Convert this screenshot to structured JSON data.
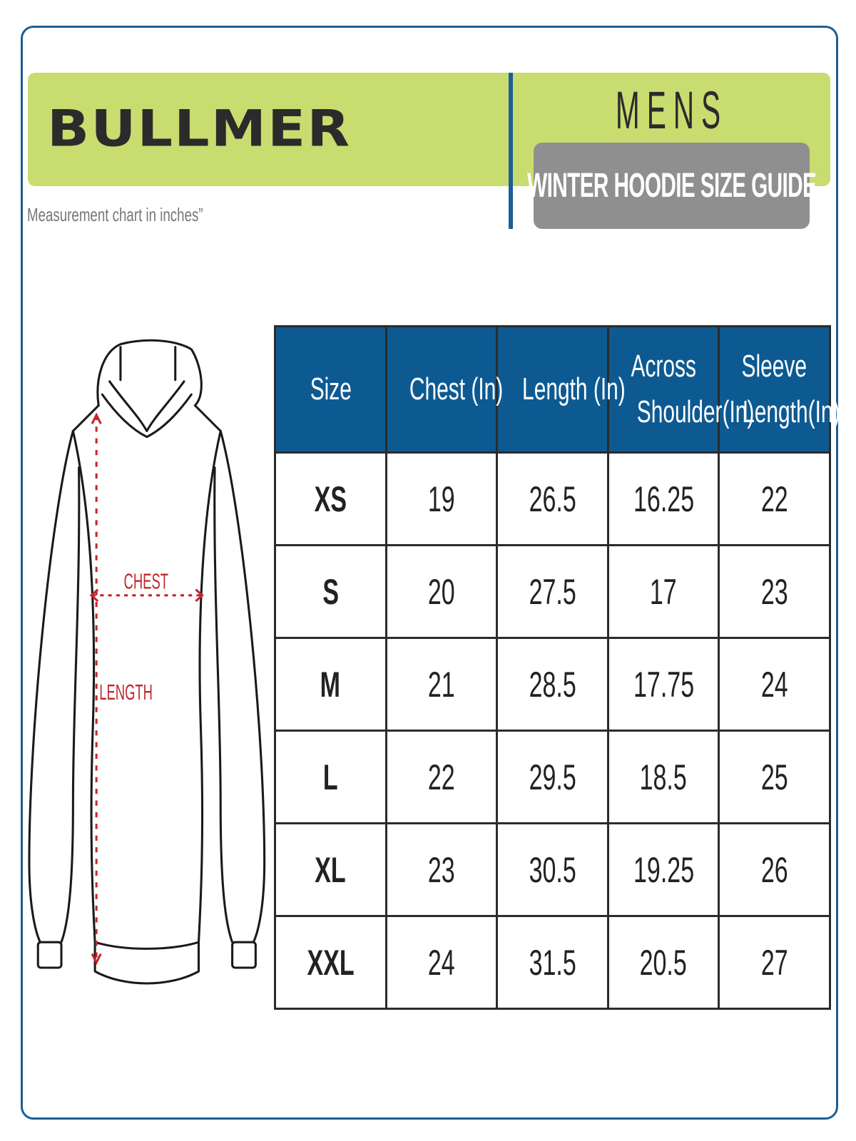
{
  "header": {
    "brand": "BULLMER",
    "subtitle": "Measurement chart in inches”",
    "gender": "MENS",
    "guide_title": "WINTER HOODIE SIZE GUIDE"
  },
  "colors": {
    "band": "#c9dc6f",
    "accent_blue": "#0d5a92",
    "guide_grey": "#8f8f8f",
    "measure_red": "#c0272d"
  },
  "diagram": {
    "chest_label": "CHEST",
    "length_label": "LENGTH"
  },
  "table": {
    "headers": [
      {
        "line1": "Size",
        "line2": ""
      },
      {
        "line1": "Chest (In)",
        "line2": ""
      },
      {
        "line1": "Length (In)",
        "line2": ""
      },
      {
        "line1": "Across",
        "line2": "Shoulder(In)"
      },
      {
        "line1": "Sleeve",
        "line2": "Length(In)"
      }
    ],
    "rows": [
      [
        "XS",
        "19",
        "26.5",
        "16.25",
        "22"
      ],
      [
        "S",
        "20",
        "27.5",
        "17",
        "23"
      ],
      [
        "M",
        "21",
        "28.5",
        "17.75",
        "24"
      ],
      [
        "L",
        "22",
        "29.5",
        "18.5",
        "25"
      ],
      [
        "XL",
        "23",
        "30.5",
        "19.25",
        "26"
      ],
      [
        "XXL",
        "24",
        "31.5",
        "20.5",
        "27"
      ]
    ]
  }
}
